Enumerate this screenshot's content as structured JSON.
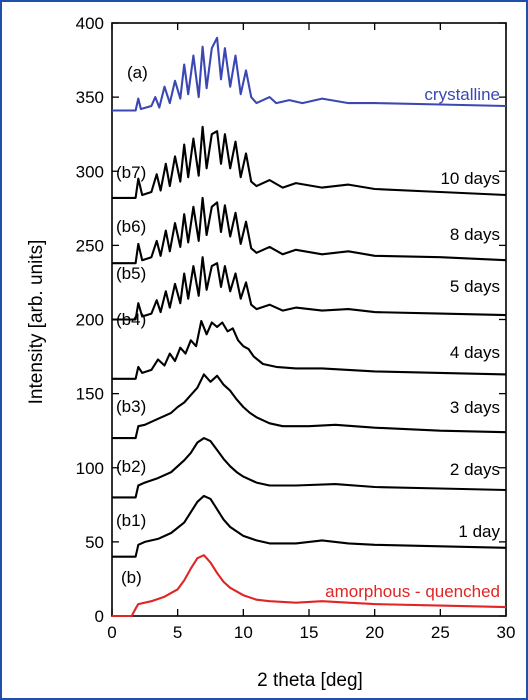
{
  "chart_data": {
    "type": "line",
    "title": "",
    "xlabel": "2 theta [deg]",
    "ylabel": "Intensity [arb. units]",
    "xlim": [
      0,
      30
    ],
    "ylim": [
      0,
      400
    ],
    "xticks": [
      0,
      5,
      10,
      15,
      20,
      25,
      30
    ],
    "yticks": [
      0,
      50,
      100,
      150,
      200,
      250,
      300,
      350,
      400
    ],
    "grid": false,
    "colors": {
      "crystalline": "#3b48b4",
      "amorphous": "#e02525",
      "aging": "#000000"
    },
    "series": [
      {
        "tag": "(a)",
        "label": "crystalline",
        "color": "#3b48b4",
        "x": [
          0,
          1.8,
          2.0,
          2.2,
          3.0,
          3.3,
          3.6,
          4.0,
          4.4,
          4.8,
          5.2,
          5.5,
          5.8,
          6.2,
          6.6,
          6.9,
          7.2,
          7.6,
          8.0,
          8.3,
          8.6,
          9.0,
          9.4,
          9.8,
          10.2,
          10.6,
          11.0,
          12.0,
          12.5,
          13.5,
          14.5,
          16.0,
          18.0,
          20.0,
          25.0,
          30.0
        ],
        "y": [
          341,
          341,
          349,
          342,
          344,
          350,
          343,
          357,
          346,
          361,
          349,
          372,
          352,
          378,
          350,
          384,
          356,
          383,
          390,
          362,
          383,
          357,
          378,
          352,
          368,
          350,
          346,
          350,
          346,
          348,
          346,
          349,
          346,
          346,
          345,
          344
        ]
      },
      {
        "tag": "(b7)",
        "label": "10 days",
        "color": "#000000",
        "x": [
          0,
          1.8,
          2.0,
          2.3,
          3.0,
          3.4,
          3.7,
          4.1,
          4.4,
          4.8,
          5.2,
          5.5,
          5.8,
          6.2,
          6.6,
          6.9,
          7.2,
          7.6,
          8.0,
          8.3,
          8.6,
          9.0,
          9.4,
          9.8,
          10.2,
          10.6,
          11.0,
          12.0,
          13.0,
          14.0,
          16.0,
          18.0,
          20.0,
          25.0,
          30.0
        ],
        "y": [
          282,
          282,
          295,
          284,
          286,
          298,
          287,
          305,
          290,
          310,
          293,
          318,
          296,
          322,
          297,
          330,
          302,
          325,
          327,
          305,
          325,
          302,
          320,
          296,
          312,
          293,
          290,
          294,
          289,
          292,
          289,
          291,
          288,
          286,
          284
        ]
      },
      {
        "tag": "(b6)",
        "label": "8 days",
        "color": "#000000",
        "x": [
          0,
          1.8,
          2.0,
          2.3,
          3.0,
          3.4,
          3.7,
          4.1,
          4.4,
          4.8,
          5.2,
          5.5,
          5.8,
          6.2,
          6.6,
          6.9,
          7.2,
          7.6,
          8.0,
          8.3,
          8.6,
          9.0,
          9.4,
          9.8,
          10.2,
          10.6,
          11.0,
          12.0,
          13.0,
          14.0,
          16.0,
          18.0,
          20.0,
          25.0,
          30.0
        ],
        "y": [
          238,
          238,
          251,
          240,
          242,
          253,
          243,
          260,
          246,
          265,
          249,
          271,
          252,
          276,
          253,
          282,
          257,
          276,
          279,
          259,
          277,
          256,
          272,
          251,
          266,
          248,
          245,
          249,
          244,
          247,
          244,
          246,
          243,
          242,
          240
        ]
      },
      {
        "tag": "(b5)",
        "label": "5 days",
        "color": "#000000",
        "x": [
          0,
          1.8,
          2.0,
          2.3,
          3.0,
          3.4,
          3.7,
          4.1,
          4.4,
          4.8,
          5.2,
          5.5,
          5.8,
          6.2,
          6.6,
          6.9,
          7.2,
          7.6,
          8.0,
          8.3,
          8.6,
          9.0,
          9.4,
          9.8,
          10.2,
          10.6,
          11.0,
          12.0,
          13.0,
          14.0,
          16.0,
          18.0,
          20.0,
          25.0,
          30.0
        ],
        "y": [
          200,
          200,
          211,
          202,
          204,
          213,
          205,
          219,
          208,
          224,
          211,
          231,
          214,
          236,
          216,
          242,
          220,
          236,
          238,
          222,
          236,
          219,
          231,
          214,
          225,
          210,
          207,
          210,
          206,
          208,
          206,
          207,
          205,
          204,
          203
        ]
      },
      {
        "tag": "(b4)",
        "label": "4 days",
        "color": "#000000",
        "x": [
          0,
          1.8,
          2.0,
          2.3,
          3.0,
          3.5,
          4.0,
          4.4,
          4.8,
          5.2,
          5.6,
          6.0,
          6.4,
          6.8,
          7.2,
          7.6,
          8.0,
          8.4,
          8.8,
          9.2,
          9.6,
          10.0,
          10.4,
          10.8,
          11.5,
          12.5,
          14.0,
          16.0,
          18.0,
          20.0,
          25.0,
          30.0
        ],
        "y": [
          160,
          160,
          168,
          164,
          166,
          173,
          169,
          177,
          172,
          181,
          177,
          186,
          182,
          199,
          190,
          198,
          195,
          198,
          192,
          194,
          186,
          182,
          180,
          175,
          170,
          168,
          167,
          167,
          166,
          165,
          164,
          163
        ]
      },
      {
        "tag": "(b3)",
        "label": "3 days",
        "color": "#000000",
        "x": [
          0,
          1.8,
          2.0,
          2.5,
          3.0,
          3.5,
          4.0,
          4.5,
          5.0,
          5.5,
          6.0,
          6.5,
          7.0,
          7.5,
          8.0,
          8.5,
          9.0,
          9.5,
          10.0,
          10.5,
          11.0,
          12.0,
          13.0,
          15.0,
          17.0,
          20.0,
          25.0,
          30.0
        ],
        "y": [
          120,
          120,
          128,
          129,
          131,
          133,
          135,
          137,
          141,
          144,
          149,
          154,
          163,
          158,
          162,
          156,
          152,
          146,
          141,
          137,
          134,
          130,
          128,
          128,
          129,
          127,
          125,
          124
        ]
      },
      {
        "tag": "(b2)",
        "label": "2 days",
        "color": "#000000",
        "x": [
          0,
          1.8,
          2.0,
          2.5,
          3.5,
          4.5,
          5.5,
          6.0,
          6.5,
          7.0,
          7.5,
          8.0,
          8.5,
          9.0,
          9.5,
          10.0,
          11.0,
          12.0,
          14.0,
          17.0,
          20.0,
          25.0,
          30.0
        ],
        "y": [
          80,
          80,
          88,
          90,
          93,
          97,
          105,
          110,
          117,
          120,
          118,
          112,
          106,
          101,
          97,
          94,
          90,
          88,
          88,
          89,
          87,
          86,
          85
        ]
      },
      {
        "tag": "(b1)",
        "label": "1 day",
        "color": "#000000",
        "x": [
          0,
          1.8,
          2.0,
          2.5,
          3.5,
          4.5,
          5.5,
          6.0,
          6.5,
          7.0,
          7.5,
          8.0,
          8.5,
          9.0,
          10.0,
          11.0,
          12.0,
          14.0,
          16.0,
          18.0,
          20.0,
          25.0,
          30.0
        ],
        "y": [
          40,
          40,
          48,
          50,
          52,
          56,
          63,
          70,
          77,
          81,
          79,
          72,
          65,
          60,
          54,
          51,
          49,
          49,
          51,
          49,
          48,
          47,
          46
        ]
      },
      {
        "tag": "(b)",
        "label": "amorphous - quenched",
        "color": "#e02525",
        "x": [
          0,
          1.5,
          1.8,
          2.0,
          3.0,
          4.0,
          5.0,
          5.5,
          6.0,
          6.5,
          7.0,
          7.5,
          8.0,
          8.5,
          9.0,
          10.0,
          11.0,
          12.0,
          14.0,
          16.0,
          18.0,
          20.0,
          25.0,
          30.0
        ],
        "y": [
          0,
          0,
          5,
          8,
          10,
          13,
          18,
          24,
          32,
          39,
          41,
          36,
          29,
          23,
          19,
          14,
          11,
          10,
          9,
          10,
          9,
          8,
          7,
          6
        ]
      }
    ]
  }
}
